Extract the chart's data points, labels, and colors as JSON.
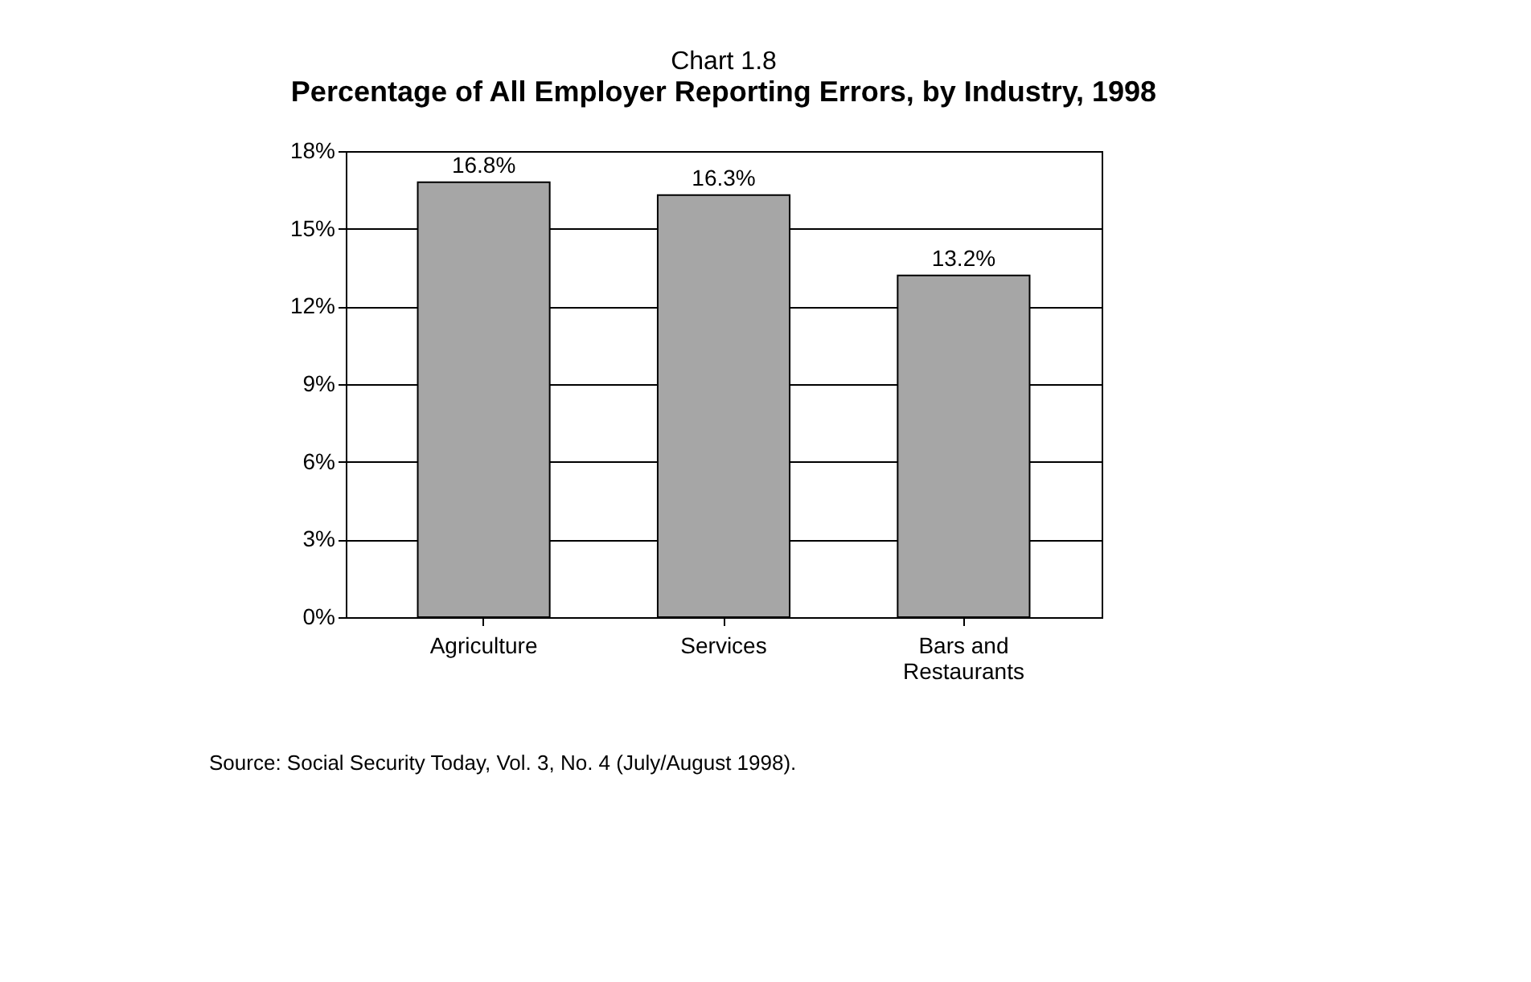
{
  "chart_data": {
    "type": "bar",
    "title": "Chart 1.8",
    "subtitle": "Percentage of All Employer Reporting Errors, by Industry, 1998",
    "categories": [
      "Agriculture",
      "Services",
      "Bars and Restaurants"
    ],
    "values": [
      16.8,
      16.3,
      13.2
    ],
    "color": "#a6a6a6",
    "value_labels": [
      "16.8%",
      "16.3%",
      "13.2%"
    ],
    "ylim": [
      0,
      18
    ],
    "yticks": [
      {
        "value": 0,
        "label": "0%"
      },
      {
        "value": 3,
        "label": "3%"
      },
      {
        "value": 6,
        "label": "6%"
      },
      {
        "value": 9,
        "label": "9%"
      },
      {
        "value": 12,
        "label": "12%"
      },
      {
        "value": 15,
        "label": "15%"
      },
      {
        "value": 18,
        "label": "18%"
      }
    ],
    "grid": "y",
    "annotations": [
      "Source: Social Security Today, Vol. 3, No. 4 (July/August 1998)."
    ]
  }
}
